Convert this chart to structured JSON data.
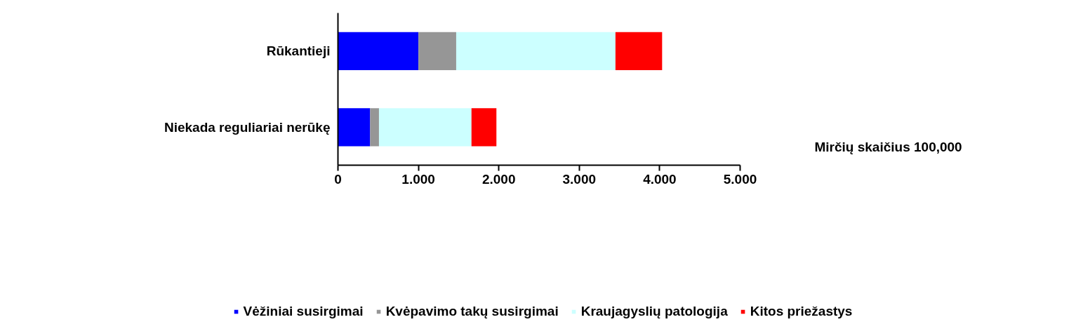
{
  "chart_data": {
    "type": "bar",
    "orientation": "horizontal",
    "stacked": true,
    "categories": [
      "Rūkantieji",
      "Niekada reguliariai nerūkę"
    ],
    "series": [
      {
        "name": "Vėžiniai susirgimai",
        "color": "#0000ff",
        "values": [
          1000,
          400
        ]
      },
      {
        "name": "Kvėpavimo takų susirgimai",
        "color": "#969696",
        "values": [
          470,
          110
        ]
      },
      {
        "name": "Kraujagyslių patologija",
        "color": "#ccffff",
        "values": [
          1980,
          1150
        ]
      },
      {
        "name": "Kitos priežastys",
        "color": "#ff0000",
        "values": [
          580,
          310
        ]
      }
    ],
    "xlim": [
      0,
      5000
    ],
    "xticks": [
      0,
      {
        "value": 1000,
        "label": "1.000"
      },
      {
        "value": 2000,
        "label": "2.000"
      },
      {
        "value": 3000,
        "label": "3.000"
      },
      {
        "value": 4000,
        "label": "4.000"
      },
      {
        "value": 5000,
        "label": "5.000"
      }
    ],
    "xlabel": "Mirčių skaičius 100,000",
    "grid": false,
    "legend": "bottom"
  }
}
